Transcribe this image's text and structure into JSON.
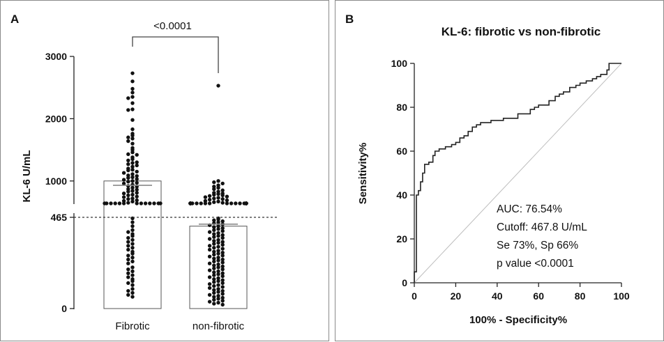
{
  "chart_data": [
    {
      "panel": "A",
      "type": "scatter",
      "ylabel": "KL-6 U/mL",
      "y_axis_lower": {
        "ticks": [
          0,
          465
        ]
      },
      "y_axis_upper": {
        "ticks": [
          1000,
          2000,
          3000
        ]
      },
      "cutoff_line": 465,
      "categories": [
        "Fibrotic",
        "non-fibrotic"
      ],
      "bar_heights": [
        1000,
        420
      ],
      "mean_lines": [
        930,
        430
      ],
      "comparison": "<0.0001",
      "series": [
        {
          "values": [
            2730,
            2600,
            2480,
            2420,
            2350,
            2330,
            2250,
            2150,
            2140,
            1980,
            1830,
            1760,
            1730,
            1700,
            1680,
            1640,
            1600,
            1530,
            1500,
            1460,
            1430,
            1420,
            1380,
            1350,
            1330,
            1300,
            1290,
            1270,
            1250,
            1230,
            1200,
            1180,
            1170,
            1150,
            1130,
            1110,
            1090,
            1080,
            1060,
            1050,
            1030,
            1020,
            1000,
            990,
            970,
            960,
            940,
            920,
            910,
            890,
            870,
            860,
            840,
            830,
            810,
            800,
            780,
            770,
            750,
            740,
            720,
            710,
            690,
            680,
            670,
            650,
            640,
            630,
            620,
            610,
            600,
            595,
            585,
            575,
            560,
            540,
            520,
            500,
            470,
            460,
            440,
            420,
            400,
            390,
            380,
            370,
            360,
            350,
            340,
            330,
            320,
            310,
            300,
            290,
            280,
            270,
            260,
            250,
            240,
            230,
            210,
            200,
            190,
            180,
            170,
            160,
            150,
            140,
            130,
            120,
            100,
            90,
            80,
            70,
            60
          ]
        },
        {
          "values": [
            2530,
            1000,
            980,
            960,
            930,
            910,
            890,
            870,
            850,
            830,
            810,
            800,
            790,
            780,
            770,
            760,
            750,
            740,
            730,
            720,
            710,
            700,
            690,
            680,
            670,
            660,
            650,
            640,
            630,
            620,
            615,
            610,
            605,
            600,
            595,
            590,
            585,
            580,
            575,
            570,
            565,
            560,
            555,
            550,
            545,
            540,
            535,
            530,
            525,
            520,
            515,
            510,
            505,
            500,
            495,
            490,
            485,
            480,
            470,
            460,
            455,
            450,
            445,
            440,
            435,
            430,
            425,
            420,
            415,
            410,
            405,
            400,
            395,
            390,
            385,
            380,
            375,
            370,
            365,
            360,
            355,
            350,
            345,
            340,
            335,
            330,
            325,
            320,
            315,
            310,
            305,
            300,
            295,
            290,
            285,
            280,
            275,
            270,
            265,
            260,
            255,
            250,
            245,
            240,
            235,
            230,
            225,
            220,
            215,
            210,
            205,
            200,
            195,
            190,
            185,
            180,
            175,
            170,
            165,
            160,
            155,
            150,
            145,
            140,
            135,
            130,
            125,
            120,
            115,
            110,
            105,
            100,
            95,
            90,
            85,
            80,
            75,
            70,
            65,
            60,
            55,
            50,
            45,
            40,
            35,
            30,
            25,
            20
          ]
        }
      ]
    },
    {
      "panel": "B",
      "type": "line",
      "title": "KL-6: fibrotic vs non-fibrotic",
      "xlabel": "100% - Specificity%",
      "ylabel": "Sensitivity%",
      "xlim": [
        0,
        100
      ],
      "ylim": [
        0,
        100
      ],
      "xticks": [
        0,
        20,
        40,
        60,
        80,
        100
      ],
      "yticks": [
        0,
        20,
        40,
        60,
        80,
        100
      ],
      "annotations": [
        "AUC: 76.54%",
        "Cutoff: 467.8 U/mL",
        "Se 73%, Sp 66%",
        "p value <0.0001"
      ],
      "series": [
        {
          "x": [
            0,
            0,
            1,
            1,
            2,
            2,
            3,
            3,
            4,
            4,
            5,
            5,
            7,
            7,
            9,
            9,
            10,
            10,
            12,
            12,
            15,
            15,
            18,
            18,
            20,
            20,
            22,
            22,
            24,
            24,
            26,
            26,
            28,
            28,
            30,
            30,
            32,
            32,
            34,
            34,
            37,
            37,
            40,
            40,
            43,
            43,
            47,
            47,
            50,
            50,
            54,
            54,
            56,
            56,
            58,
            58,
            60,
            60,
            62,
            62,
            65,
            65,
            68,
            68,
            70,
            70,
            72,
            72,
            75,
            75,
            78,
            78,
            80,
            80,
            83,
            83,
            86,
            86,
            88,
            88,
            90,
            90,
            93,
            93,
            94,
            94,
            97,
            97,
            100
          ],
          "y": [
            0,
            5,
            5,
            40,
            40,
            42,
            42,
            46,
            46,
            50,
            50,
            54,
            54,
            55,
            55,
            58,
            58,
            60,
            60,
            61,
            61,
            62,
            62,
            63,
            63,
            64,
            64,
            66,
            66,
            67,
            67,
            69,
            69,
            71,
            71,
            72,
            72,
            73,
            73,
            73,
            73,
            74,
            74,
            74,
            74,
            75,
            75,
            75,
            75,
            77,
            77,
            77,
            77,
            79,
            79,
            80,
            80,
            81,
            81,
            81,
            81,
            83,
            83,
            85,
            85,
            86,
            86,
            87,
            87,
            89,
            89,
            90,
            90,
            91,
            91,
            92,
            92,
            93,
            93,
            94,
            94,
            95,
            95,
            97,
            97,
            100,
            100,
            100,
            100
          ]
        }
      ],
      "reference_line": {
        "x": [
          0,
          100
        ],
        "y": [
          0,
          100
        ]
      }
    }
  ]
}
